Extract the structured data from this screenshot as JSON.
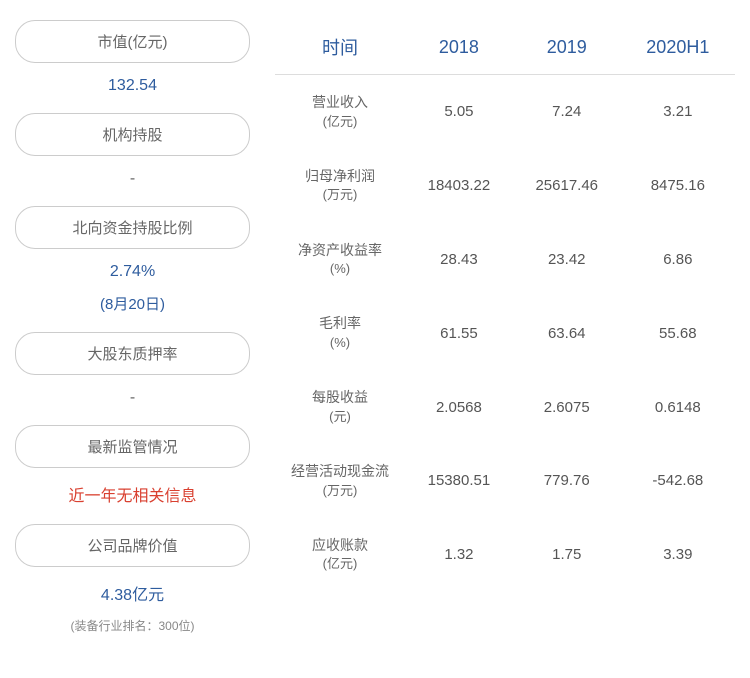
{
  "left_panel": {
    "items": [
      {
        "label": "市值(亿元)",
        "value": "132.54",
        "value_color": "blue"
      },
      {
        "label": "机构持股",
        "value": "-",
        "value_color": "gray"
      },
      {
        "label": "北向资金持股比例",
        "value": "2.74%",
        "subvalue": "(8月20日)",
        "value_color": "blue"
      },
      {
        "label": "大股东质押率",
        "value": "-",
        "value_color": "gray"
      },
      {
        "label": "最新监管情况",
        "value": "近一年无相关信息",
        "value_color": "red"
      },
      {
        "label": "公司品牌价值",
        "value": "4.38亿元",
        "subtext": "(装备行业排名：300位)",
        "value_color": "blue"
      }
    ]
  },
  "table": {
    "header_color": "#2e5c9e",
    "columns": [
      "时间",
      "2018",
      "2019",
      "2020H1"
    ],
    "rows": [
      {
        "name": "营业收入",
        "unit": "(亿元)",
        "values": [
          "5.05",
          "7.24",
          "3.21"
        ]
      },
      {
        "name": "归母净利润",
        "unit": "(万元)",
        "values": [
          "18403.22",
          "25617.46",
          "8475.16"
        ]
      },
      {
        "name": "净资产收益率",
        "unit": "(%)",
        "values": [
          "28.43",
          "23.42",
          "6.86"
        ]
      },
      {
        "name": "毛利率",
        "unit": "(%)",
        "values": [
          "61.55",
          "63.64",
          "55.68"
        ]
      },
      {
        "name": "每股收益",
        "unit": "(元)",
        "values": [
          "2.0568",
          "2.6075",
          "0.6148"
        ]
      },
      {
        "name": "经营活动现金流",
        "unit": "(万元)",
        "values": [
          "15380.51",
          "779.76",
          "-542.68"
        ]
      },
      {
        "name": "应收账款",
        "unit": "(亿元)",
        "values": [
          "1.32",
          "1.75",
          "3.39"
        ]
      }
    ]
  },
  "colors": {
    "blue": "#2e5c9e",
    "red": "#d94030",
    "gray": "#666666",
    "border": "#cccccc",
    "text": "#555555"
  }
}
